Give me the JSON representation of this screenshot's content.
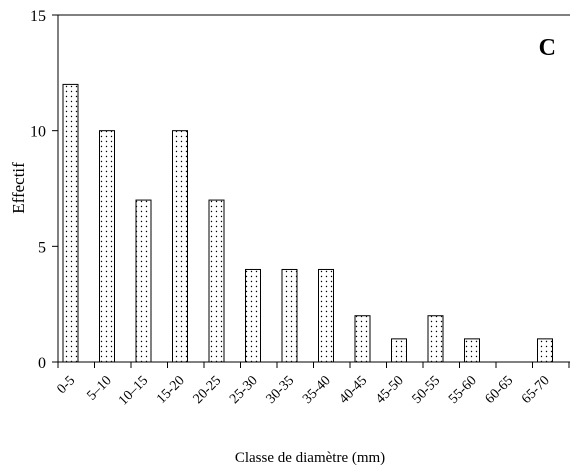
{
  "chart_data": {
    "type": "bar",
    "panel_label": "C",
    "title": "",
    "xlabel": "Classe de diamètre (mm)",
    "ylabel": "Effectif",
    "categories": [
      "0-5",
      "5–10",
      "10–15",
      "15-20",
      "20-25",
      "25-30",
      "30-35",
      "35-40",
      "40-45",
      "45-50",
      "50-55",
      "55-60",
      "60-65",
      "65-70"
    ],
    "values": [
      12,
      10,
      7,
      10,
      7,
      4,
      4,
      4,
      2,
      1,
      2,
      1,
      0,
      1
    ],
    "ylim": [
      0,
      15
    ],
    "yticks": [
      0,
      5,
      10,
      15
    ],
    "grid": false,
    "bar_fill": "dotted",
    "colors": {
      "bar_edge": "#000000",
      "bar_background": "#ffffff",
      "dots": "#000000"
    }
  }
}
